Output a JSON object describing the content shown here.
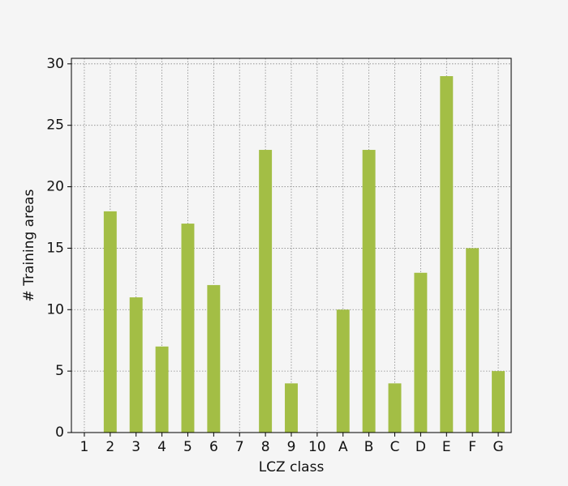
{
  "chart_data": {
    "type": "bar",
    "xlabel": "LCZ class",
    "ylabel": "# Training areas",
    "categories": [
      "1",
      "2",
      "3",
      "4",
      "5",
      "6",
      "7",
      "8",
      "9",
      "10",
      "A",
      "B",
      "C",
      "D",
      "E",
      "F",
      "G"
    ],
    "values": [
      0,
      18,
      11,
      7,
      17,
      12,
      0,
      23,
      4,
      0,
      10,
      23,
      4,
      13,
      29,
      15,
      5
    ],
    "color": "#a3be45",
    "ylim": [
      0,
      30.45
    ],
    "yticks": [
      0,
      5,
      10,
      15,
      20,
      25,
      30
    ],
    "grid": true
  }
}
